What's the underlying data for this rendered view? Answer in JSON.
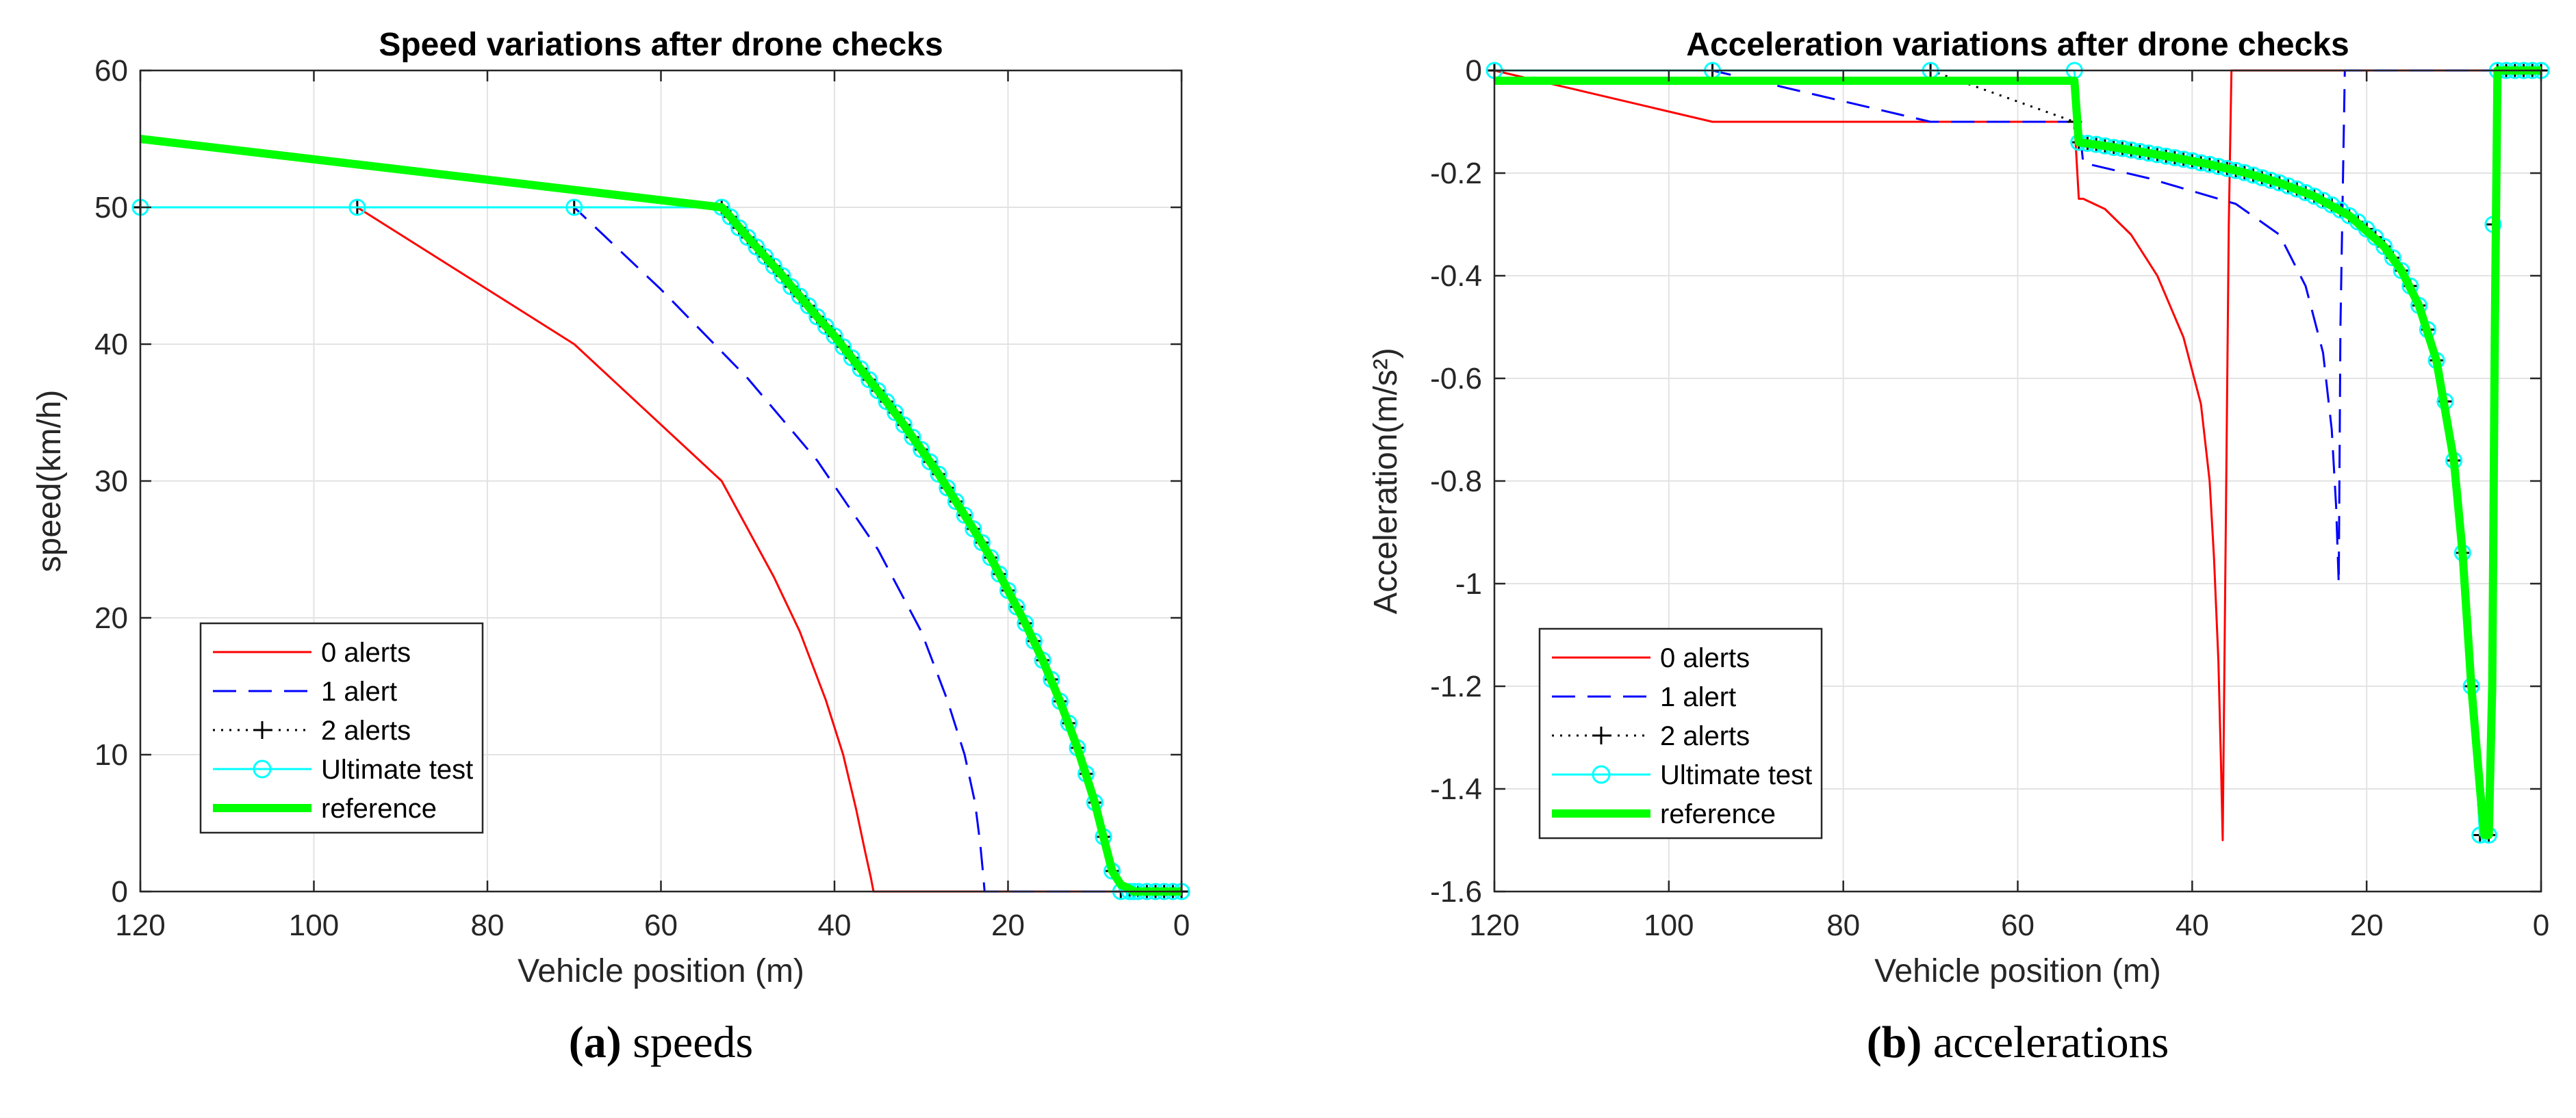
{
  "chart_data": [
    {
      "type": "line",
      "panel": "a",
      "title": "Speed variations after drone checks",
      "xlabel": "Vehicle position (m)",
      "ylabel": "speed(km/h)",
      "xlim": [
        120,
        0
      ],
      "ylim": [
        0,
        60
      ],
      "x_reversed": true,
      "grid": true,
      "xticks": [
        120,
        100,
        80,
        60,
        40,
        20,
        0
      ],
      "yticks": [
        0,
        10,
        20,
        30,
        40,
        50,
        60
      ],
      "xtick_labels": [
        "120",
        "100",
        "80",
        "60",
        "40",
        "20",
        "0"
      ],
      "ytick_labels": [
        "0",
        "10",
        "20",
        "30",
        "40",
        "50",
        "60"
      ],
      "legend_position": "bottom-left",
      "caption": {
        "letter": "(a)",
        "text": "speeds"
      },
      "series": [
        {
          "name": "0 alerts",
          "color": "#ff0000",
          "style": "solid",
          "marker": "none",
          "x": [
            120,
            95,
            70,
            53,
            47,
            44,
            41,
            39,
            37.5,
            36.5,
            35.8,
            35.5,
            0
          ],
          "y": [
            50,
            50,
            40,
            30,
            23,
            19,
            14,
            10,
            6,
            3,
            1,
            0,
            0
          ]
        },
        {
          "name": "1 alert",
          "color": "#0000ff",
          "style": "dashed",
          "marker": "none",
          "x": [
            120,
            95,
            70,
            60,
            50,
            42,
            35,
            30,
            27,
            25,
            23.8,
            23.2,
            22.9,
            22.7,
            0
          ],
          "y": [
            50,
            50,
            50,
            44,
            37.5,
            31.5,
            25,
            19,
            14,
            10,
            6.5,
            3.5,
            1.5,
            0,
            0
          ]
        },
        {
          "name": "2 alerts",
          "color": "#000000",
          "style": "dotted",
          "marker": "plus",
          "x": [
            120,
            95,
            70,
            53,
            52,
            51,
            50,
            49,
            48,
            47,
            46,
            45,
            44,
            43,
            42,
            41,
            40,
            39,
            38,
            37,
            36,
            35,
            34,
            33,
            32,
            31,
            30,
            29,
            28,
            27,
            26,
            25,
            24,
            23,
            22,
            21,
            20,
            19,
            18,
            17,
            16,
            15,
            14,
            13,
            12,
            11,
            10,
            9,
            8,
            7,
            6,
            5.5,
            5,
            4,
            3,
            2,
            1,
            0
          ],
          "y": [
            50,
            50,
            50,
            50,
            49.3,
            48.5,
            47.8,
            47.1,
            46.4,
            45.7,
            45,
            44.2,
            43.5,
            42.8,
            42,
            41.3,
            40.6,
            39.8,
            39,
            38.2,
            37.4,
            36.6,
            35.8,
            35,
            34.1,
            33.2,
            32.3,
            31.4,
            30.5,
            29.5,
            28.5,
            27.5,
            26.5,
            25.5,
            24.4,
            23.2,
            22,
            20.8,
            19.6,
            18.3,
            16.9,
            15.5,
            13.9,
            12.3,
            10.5,
            8.6,
            6.5,
            4,
            1.5,
            0,
            0,
            0,
            0,
            0,
            0,
            0,
            0,
            0
          ]
        },
        {
          "name": "Ultimate test",
          "color": "#00ffff",
          "style": "solid",
          "marker": "circle",
          "x": [
            120,
            95,
            70,
            53,
            52,
            51,
            50,
            49,
            48,
            47,
            46,
            45,
            44,
            43,
            42,
            41,
            40,
            39,
            38,
            37,
            36,
            35,
            34,
            33,
            32,
            31,
            30,
            29,
            28,
            27,
            26,
            25,
            24,
            23,
            22,
            21,
            20,
            19,
            18,
            17,
            16,
            15,
            14,
            13,
            12,
            11,
            10,
            9,
            8,
            7,
            6,
            5.5,
            5,
            4,
            3,
            2,
            1,
            0
          ],
          "y": [
            50,
            50,
            50,
            50,
            49.3,
            48.5,
            47.8,
            47.1,
            46.4,
            45.7,
            45,
            44.2,
            43.5,
            42.8,
            42,
            41.3,
            40.6,
            39.8,
            39,
            38.2,
            37.4,
            36.6,
            35.8,
            35,
            34.1,
            33.2,
            32.3,
            31.4,
            30.5,
            29.5,
            28.5,
            27.5,
            26.5,
            25.5,
            24.4,
            23.2,
            22,
            20.8,
            19.6,
            18.3,
            16.9,
            15.5,
            13.9,
            12.3,
            10.5,
            8.6,
            6.5,
            4,
            1.5,
            0,
            0,
            0,
            0,
            0,
            0,
            0,
            0,
            0
          ]
        },
        {
          "name": "reference",
          "color": "#00ff00",
          "style": "solid-thick",
          "marker": "none",
          "x": [
            120,
            53,
            52,
            50,
            48,
            46,
            44,
            42,
            40,
            38,
            36,
            34,
            32,
            30,
            28,
            26,
            24,
            22,
            20,
            18,
            16,
            14,
            12,
            10,
            9,
            8,
            7,
            6,
            5.5,
            5.3,
            0
          ],
          "y": [
            55,
            50,
            49.3,
            47.8,
            46.4,
            45,
            43.5,
            42,
            40.6,
            39,
            37.4,
            35.8,
            34.1,
            32.3,
            30.5,
            28.5,
            26.5,
            24.4,
            22,
            19.6,
            16.9,
            13.9,
            10.5,
            6.5,
            4,
            1.5,
            0.5,
            0.2,
            0,
            0,
            0
          ]
        }
      ]
    },
    {
      "type": "line",
      "panel": "b",
      "title": "Acceleration variations after drone checks",
      "xlabel": "Vehicle position (m)",
      "ylabel": "Acceleration(m/s²)",
      "xlim": [
        120,
        0
      ],
      "ylim": [
        -1.6,
        0
      ],
      "x_reversed": true,
      "grid": true,
      "xticks": [
        120,
        100,
        80,
        60,
        40,
        20,
        0
      ],
      "yticks": [
        -1.6,
        -1.4,
        -1.2,
        -1,
        -0.8,
        -0.6,
        -0.4,
        -0.2,
        0
      ],
      "xtick_labels": [
        "120",
        "100",
        "80",
        "60",
        "40",
        "20",
        "0"
      ],
      "ytick_labels": [
        "-1.6",
        "-1.4",
        "-1.2",
        "-1",
        "-0.8",
        "-0.6",
        "-0.4",
        "-0.2",
        "0"
      ],
      "legend_position": "bottom-left",
      "caption": {
        "letter": "(b)",
        "text": "accelerations"
      },
      "series": [
        {
          "name": "0 alerts",
          "color": "#ff0000",
          "style": "solid",
          "marker": "none",
          "x": [
            120,
            95,
            70,
            53.5,
            53,
            52.5,
            50,
            47,
            44,
            41,
            39,
            38,
            37.5,
            37,
            36.7,
            36.5,
            35.8,
            35.5,
            35,
            0
          ],
          "y": [
            0,
            -0.1,
            -0.1,
            -0.1,
            -0.25,
            -0.25,
            -0.27,
            -0.32,
            -0.4,
            -0.52,
            -0.65,
            -0.8,
            -0.95,
            -1.15,
            -1.35,
            -1.5,
            -0.3,
            0,
            0,
            0
          ]
        },
        {
          "name": "1 alert",
          "color": "#0000ff",
          "style": "dashed",
          "marker": "none",
          "x": [
            120,
            95,
            70,
            60,
            53,
            52.5,
            45,
            35,
            30,
            27,
            25,
            24,
            23.5,
            23.2,
            23,
            22.5,
            22,
            0
          ],
          "y": [
            0,
            0,
            -0.1,
            -0.1,
            -0.1,
            -0.18,
            -0.21,
            -0.26,
            -0.32,
            -0.42,
            -0.55,
            -0.7,
            -0.85,
            -1,
            -0.5,
            0,
            0,
            0
          ]
        },
        {
          "name": "2 alerts",
          "color": "#000000",
          "style": "dotted",
          "marker": "plus",
          "x": [
            120,
            95,
            70,
            53.5,
            53,
            52,
            51,
            50,
            49,
            48,
            47,
            46,
            45,
            44,
            43,
            42,
            41,
            40,
            39,
            38,
            37,
            36,
            35,
            34,
            33,
            32,
            31,
            30,
            29,
            28,
            27,
            26,
            25,
            24,
            23,
            22,
            21,
            20,
            19,
            18,
            17,
            16,
            15,
            14,
            13,
            12,
            11,
            10,
            9,
            8,
            7,
            6,
            5.5,
            5,
            4,
            3,
            2,
            1,
            0
          ],
          "y": [
            0,
            0,
            0,
            -0.1,
            -0.14,
            -0.142,
            -0.144,
            -0.147,
            -0.15,
            -0.152,
            -0.155,
            -0.158,
            -0.161,
            -0.164,
            -0.167,
            -0.17,
            -0.173,
            -0.176,
            -0.18,
            -0.183,
            -0.187,
            -0.191,
            -0.195,
            -0.199,
            -0.204,
            -0.209,
            -0.214,
            -0.219,
            -0.225,
            -0.231,
            -0.238,
            -0.245,
            -0.253,
            -0.262,
            -0.272,
            -0.283,
            -0.295,
            -0.309,
            -0.325,
            -0.343,
            -0.365,
            -0.39,
            -0.42,
            -0.458,
            -0.505,
            -0.565,
            -0.645,
            -0.76,
            -0.94,
            -1.2,
            -1.49,
            -1.49,
            -0.3,
            0,
            0,
            0,
            0,
            0,
            0
          ]
        },
        {
          "name": "Ultimate test",
          "color": "#00ffff",
          "style": "solid",
          "marker": "circle",
          "x": [
            120,
            95,
            70,
            53.5,
            53,
            52,
            51,
            50,
            49,
            48,
            47,
            46,
            45,
            44,
            43,
            42,
            41,
            40,
            39,
            38,
            37,
            36,
            35,
            34,
            33,
            32,
            31,
            30,
            29,
            28,
            27,
            26,
            25,
            24,
            23,
            22,
            21,
            20,
            19,
            18,
            17,
            16,
            15,
            14,
            13,
            12,
            11,
            10,
            9,
            8,
            7,
            6,
            5.5,
            5,
            4,
            3,
            2,
            1,
            0
          ],
          "y": [
            0,
            0,
            0,
            0,
            -0.14,
            -0.142,
            -0.144,
            -0.147,
            -0.15,
            -0.152,
            -0.155,
            -0.158,
            -0.161,
            -0.164,
            -0.167,
            -0.17,
            -0.173,
            -0.176,
            -0.18,
            -0.183,
            -0.187,
            -0.191,
            -0.195,
            -0.199,
            -0.204,
            -0.209,
            -0.214,
            -0.219,
            -0.225,
            -0.231,
            -0.238,
            -0.245,
            -0.253,
            -0.262,
            -0.272,
            -0.283,
            -0.295,
            -0.309,
            -0.325,
            -0.343,
            -0.365,
            -0.39,
            -0.42,
            -0.458,
            -0.505,
            -0.565,
            -0.645,
            -0.76,
            -0.94,
            -1.2,
            -1.49,
            -1.49,
            -0.3,
            0,
            0,
            0,
            0,
            0,
            0
          ]
        },
        {
          "name": "reference",
          "color": "#00ff00",
          "style": "solid-thick",
          "marker": "none",
          "x": [
            120,
            53.5,
            53,
            50,
            46,
            42,
            38,
            34,
            30,
            26,
            22,
            18,
            16,
            14,
            12,
            10,
            9,
            8,
            7,
            6.5,
            6,
            5.6,
            5.3,
            5,
            4,
            0
          ],
          "y": [
            -0.02,
            -0.02,
            -0.14,
            -0.147,
            -0.158,
            -0.17,
            -0.183,
            -0.199,
            -0.219,
            -0.245,
            -0.283,
            -0.343,
            -0.39,
            -0.458,
            -0.565,
            -0.76,
            -0.94,
            -1.2,
            -1.4,
            -1.49,
            -1.49,
            -1.2,
            -0.5,
            0,
            0,
            0
          ]
        }
      ]
    }
  ]
}
